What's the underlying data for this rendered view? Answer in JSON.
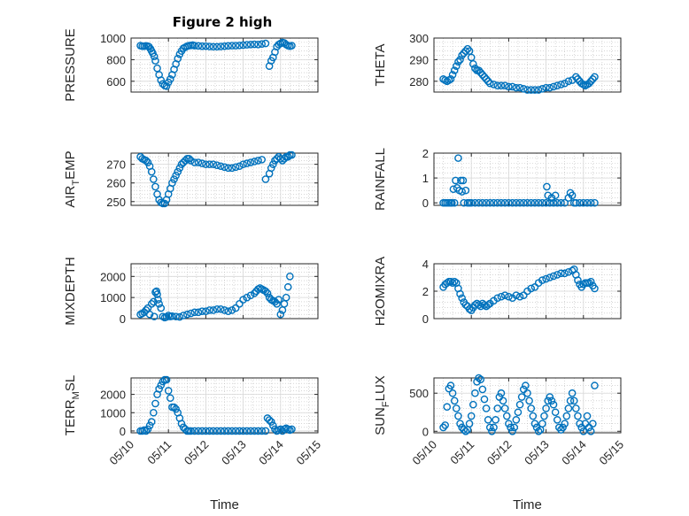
{
  "figure_title": "Figure 2 high",
  "colors": {
    "marker": "#0072bd",
    "axis": "#262626"
  },
  "chart_data": [
    {
      "type": "scatter",
      "ylabel": "PRESSURE",
      "ylabel_sub": "",
      "ylabel_tail": "",
      "title": "Figure 2 high",
      "xlim": [
        "05/10",
        "05/15"
      ],
      "ylim": [
        500,
        1000
      ],
      "yticks": [
        "600",
        "800",
        "1000"
      ],
      "ytick_values": [
        600,
        800,
        1000
      ],
      "xtick_labels_visible": false,
      "grid": true,
      "x": [
        0.25,
        0.3,
        0.35,
        0.4,
        0.45,
        0.48,
        0.52,
        0.55,
        0.58,
        0.62,
        0.65,
        0.7,
        0.75,
        0.8,
        0.85,
        0.9,
        0.95,
        1.0,
        1.05,
        1.1,
        1.15,
        1.2,
        1.25,
        1.3,
        1.35,
        1.4,
        1.45,
        1.5,
        1.55,
        1.6,
        1.65,
        1.7,
        1.8,
        1.9,
        2.0,
        2.1,
        2.2,
        2.3,
        2.4,
        2.5,
        2.6,
        2.7,
        2.8,
        2.9,
        3.0,
        3.1,
        3.2,
        3.3,
        3.4,
        3.5,
        3.6,
        3.7,
        3.75,
        3.8,
        3.85,
        3.9,
        3.95,
        4.0,
        4.05,
        4.1,
        4.15,
        4.2,
        4.25,
        4.3
      ],
      "y": [
        930,
        925,
        925,
        928,
        925,
        920,
        900,
        880,
        860,
        830,
        790,
        720,
        660,
        610,
        575,
        560,
        555,
        590,
        620,
        660,
        710,
        760,
        810,
        850,
        880,
        905,
        915,
        925,
        930,
        932,
        935,
        930,
        928,
        925,
        925,
        922,
        920,
        920,
        922,
        925,
        928,
        930,
        930,
        932,
        935,
        938,
        940,
        942,
        940,
        945,
        950,
        740,
        790,
        820,
        870,
        920,
        940,
        950,
        960,
        955,
        940,
        930,
        925,
        930
      ]
    },
    {
      "type": "scatter",
      "ylabel": "THETA",
      "ylabel_sub": "",
      "ylabel_tail": "",
      "xlim": [
        "05/10",
        "05/15"
      ],
      "ylim": [
        275,
        300
      ],
      "yticks": [
        "280",
        "290",
        "300"
      ],
      "ytick_values": [
        280,
        290,
        300
      ],
      "xtick_labels_visible": false,
      "grid": true,
      "x": [
        0.25,
        0.3,
        0.35,
        0.4,
        0.45,
        0.5,
        0.55,
        0.6,
        0.65,
        0.7,
        0.75,
        0.8,
        0.85,
        0.9,
        0.95,
        1.0,
        1.05,
        1.1,
        1.15,
        1.2,
        1.25,
        1.3,
        1.35,
        1.4,
        1.45,
        1.5,
        1.6,
        1.7,
        1.8,
        1.9,
        2.0,
        2.1,
        2.2,
        2.3,
        2.4,
        2.5,
        2.6,
        2.7,
        2.8,
        2.9,
        3.0,
        3.1,
        3.2,
        3.3,
        3.4,
        3.5,
        3.6,
        3.7,
        3.8,
        3.85,
        3.9,
        3.95,
        4.0,
        4.05,
        4.1,
        4.15,
        4.2,
        4.25,
        4.3
      ],
      "y": [
        281,
        280.5,
        280,
        280.5,
        281,
        283,
        285,
        287,
        289,
        290,
        292,
        293,
        294,
        295,
        294,
        291,
        288,
        286,
        285,
        285,
        284,
        283,
        282,
        281,
        280,
        279,
        278.5,
        278,
        278,
        278,
        277.5,
        277.5,
        277,
        277,
        276.5,
        276,
        276,
        276,
        276,
        276.5,
        277,
        277,
        277.5,
        278,
        278.5,
        279,
        280,
        280.5,
        282,
        281,
        280,
        279,
        278.5,
        278,
        278.5,
        279,
        280,
        281,
        282
      ]
    },
    {
      "type": "scatter",
      "ylabel": "AIR",
      "ylabel_sub": "T",
      "ylabel_tail": "EMP",
      "xlim": [
        "05/10",
        "05/15"
      ],
      "ylim": [
        248,
        276
      ],
      "yticks": [
        "250",
        "260",
        "270"
      ],
      "ytick_values": [
        250,
        260,
        270
      ],
      "xtick_labels_visible": false,
      "grid": true,
      "x": [
        0.25,
        0.3,
        0.35,
        0.4,
        0.45,
        0.5,
        0.55,
        0.6,
        0.65,
        0.7,
        0.75,
        0.8,
        0.85,
        0.9,
        0.95,
        1.0,
        1.05,
        1.1,
        1.15,
        1.2,
        1.25,
        1.3,
        1.35,
        1.4,
        1.45,
        1.5,
        1.55,
        1.6,
        1.7,
        1.8,
        1.9,
        2.0,
        2.1,
        2.2,
        2.3,
        2.4,
        2.5,
        2.6,
        2.7,
        2.8,
        2.9,
        3.0,
        3.1,
        3.2,
        3.3,
        3.4,
        3.5,
        3.6,
        3.7,
        3.75,
        3.8,
        3.85,
        3.9,
        3.95,
        4.0,
        4.05,
        4.1,
        4.15,
        4.2,
        4.25,
        4.3
      ],
      "y": [
        274,
        273,
        272.5,
        272,
        271,
        269,
        266,
        262,
        258,
        254,
        251,
        249.5,
        249,
        249,
        251,
        254,
        257,
        260,
        262,
        264,
        266,
        268,
        270,
        271,
        272,
        273,
        273,
        272,
        271,
        271,
        270.5,
        270,
        270,
        270,
        269.5,
        269,
        268.5,
        268,
        268,
        268.5,
        269,
        270,
        270.5,
        271,
        271.5,
        272,
        272.5,
        262,
        265,
        268,
        270,
        272,
        273,
        274,
        273,
        272,
        273,
        274,
        274,
        275,
        275
      ]
    },
    {
      "type": "scatter",
      "ylabel": "RAINFALL",
      "ylabel_sub": "",
      "ylabel_tail": "",
      "xlim": [
        "05/10",
        "05/15"
      ],
      "ylim": [
        -0.1,
        2
      ],
      "yticks": [
        "0",
        "1",
        "2"
      ],
      "ytick_values": [
        0,
        1,
        2
      ],
      "xtick_labels_visible": false,
      "grid": true,
      "x": [
        0.25,
        0.3,
        0.35,
        0.4,
        0.45,
        0.48,
        0.52,
        0.55,
        0.58,
        0.62,
        0.65,
        0.68,
        0.72,
        0.75,
        0.78,
        0.8,
        0.85,
        0.9,
        0.95,
        1.0,
        1.1,
        1.2,
        1.3,
        1.4,
        1.5,
        1.6,
        1.7,
        1.8,
        1.9,
        2.0,
        2.1,
        2.2,
        2.3,
        2.4,
        2.5,
        2.6,
        2.7,
        2.8,
        2.9,
        3.0,
        3.02,
        3.05,
        3.1,
        3.15,
        3.2,
        3.25,
        3.3,
        3.4,
        3.5,
        3.6,
        3.65,
        3.7,
        3.75,
        3.8,
        3.9,
        4.0,
        4.1,
        4.2,
        4.3
      ],
      "y": [
        0,
        0,
        0,
        0,
        0,
        0,
        0.55,
        0,
        0.9,
        0.6,
        1.8,
        0.5,
        0.9,
        0.45,
        0.9,
        0,
        0.5,
        0,
        0,
        0,
        0,
        0,
        0,
        0,
        0,
        0,
        0,
        0,
        0,
        0,
        0,
        0,
        0,
        0,
        0,
        0,
        0,
        0,
        0,
        0,
        0.65,
        0.3,
        0,
        0.2,
        0,
        0.3,
        0,
        0,
        0,
        0.2,
        0.4,
        0.3,
        0,
        0,
        0,
        0,
        0,
        0,
        0
      ]
    },
    {
      "type": "scatter",
      "ylabel": "MIXDEPTH",
      "ylabel_sub": "",
      "ylabel_tail": "",
      "xlim": [
        "05/10",
        "05/15"
      ],
      "ylim": [
        0,
        2600
      ],
      "yticks": [
        "0",
        "1000",
        "2000"
      ],
      "ytick_values": [
        0,
        1000,
        2000
      ],
      "xtick_labels_visible": false,
      "grid": true,
      "x": [
        0.25,
        0.3,
        0.35,
        0.4,
        0.45,
        0.5,
        0.55,
        0.6,
        0.62,
        0.65,
        0.68,
        0.7,
        0.72,
        0.75,
        0.8,
        0.85,
        0.9,
        0.95,
        1.0,
        1.05,
        1.1,
        1.2,
        1.3,
        1.4,
        1.5,
        1.6,
        1.7,
        1.8,
        1.9,
        2.0,
        2.1,
        2.2,
        2.3,
        2.4,
        2.5,
        2.6,
        2.7,
        2.8,
        2.9,
        3.0,
        3.1,
        3.2,
        3.3,
        3.35,
        3.4,
        3.45,
        3.5,
        3.55,
        3.6,
        3.65,
        3.7,
        3.75,
        3.8,
        3.85,
        3.9,
        3.95,
        4.0,
        4.05,
        4.1,
        4.15,
        4.2,
        4.25
      ],
      "y": [
        200,
        250,
        300,
        400,
        500,
        200,
        700,
        800,
        100,
        1250,
        1300,
        1150,
        900,
        700,
        500,
        100,
        50,
        80,
        150,
        100,
        120,
        100,
        80,
        150,
        200,
        250,
        300,
        300,
        350,
        350,
        400,
        400,
        450,
        450,
        400,
        350,
        400,
        500,
        700,
        900,
        1000,
        1100,
        1200,
        1300,
        1400,
        1450,
        1400,
        1350,
        1300,
        1200,
        1000,
        900,
        850,
        800,
        700,
        900,
        200,
        400,
        700,
        1000,
        1500,
        2000
      ]
    },
    {
      "type": "scatter",
      "ylabel": "H2OMIXRA",
      "ylabel_sub": "",
      "ylabel_tail": "",
      "xlim": [
        "05/10",
        "05/15"
      ],
      "ylim": [
        0,
        4
      ],
      "yticks": [
        "0",
        "2",
        "4"
      ],
      "ytick_values": [
        0,
        2,
        4
      ],
      "xtick_labels_visible": false,
      "grid": true,
      "x": [
        0.25,
        0.3,
        0.35,
        0.4,
        0.45,
        0.5,
        0.55,
        0.6,
        0.65,
        0.7,
        0.75,
        0.8,
        0.85,
        0.9,
        0.95,
        1.0,
        1.05,
        1.1,
        1.15,
        1.2,
        1.25,
        1.3,
        1.35,
        1.4,
        1.45,
        1.5,
        1.6,
        1.7,
        1.8,
        1.9,
        2.0,
        2.1,
        2.2,
        2.3,
        2.4,
        2.5,
        2.6,
        2.7,
        2.8,
        2.9,
        3.0,
        3.1,
        3.2,
        3.3,
        3.4,
        3.5,
        3.6,
        3.7,
        3.75,
        3.8,
        3.85,
        3.9,
        3.95,
        4.0,
        4.05,
        4.1,
        4.15,
        4.2,
        4.25,
        4.3
      ],
      "y": [
        2.3,
        2.5,
        2.6,
        2.7,
        2.7,
        2.6,
        2.7,
        2.6,
        2.2,
        1.8,
        1.5,
        1.2,
        1.0,
        0.9,
        0.7,
        0.6,
        0.8,
        1.0,
        1.1,
        1.0,
        0.9,
        1.1,
        1.0,
        0.9,
        1.0,
        1.1,
        1.3,
        1.5,
        1.6,
        1.7,
        1.6,
        1.5,
        1.7,
        1.6,
        1.7,
        2.0,
        2.2,
        2.3,
        2.6,
        2.8,
        2.9,
        3.0,
        3.1,
        3.2,
        3.3,
        3.3,
        3.4,
        3.5,
        3.6,
        3.2,
        2.8,
        2.5,
        2.3,
        2.5,
        2.6,
        2.6,
        2.6,
        2.7,
        2.4,
        2.2
      ]
    },
    {
      "type": "scatter",
      "ylabel": "TERR",
      "ylabel_sub": "M",
      "ylabel_tail": "SL",
      "xlim": [
        "05/10",
        "05/15"
      ],
      "xticks": [
        "05/10",
        "05/11",
        "05/12",
        "05/13",
        "05/14",
        "05/15"
      ],
      "xlabel": "Time",
      "ylim": [
        -100,
        2900
      ],
      "yticks": [
        "0",
        "1000",
        "2000"
      ],
      "ytick_values": [
        0,
        1000,
        2000
      ],
      "xtick_labels_visible": true,
      "grid": true,
      "x": [
        0.25,
        0.3,
        0.35,
        0.4,
        0.45,
        0.5,
        0.55,
        0.6,
        0.65,
        0.7,
        0.75,
        0.8,
        0.85,
        0.9,
        0.95,
        1.0,
        1.05,
        1.1,
        1.15,
        1.2,
        1.25,
        1.3,
        1.35,
        1.4,
        1.45,
        1.5,
        1.55,
        1.6,
        1.7,
        1.8,
        1.9,
        2.0,
        2.1,
        2.2,
        2.3,
        2.4,
        2.5,
        2.6,
        2.7,
        2.8,
        2.9,
        3.0,
        3.1,
        3.2,
        3.3,
        3.4,
        3.5,
        3.6,
        3.65,
        3.7,
        3.75,
        3.8,
        3.85,
        3.9,
        3.95,
        4.0,
        4.05,
        4.1,
        4.15,
        4.2,
        4.25,
        4.3
      ],
      "y": [
        0,
        0,
        50,
        0,
        100,
        300,
        500,
        1000,
        1500,
        2000,
        2300,
        2500,
        2700,
        2800,
        2800,
        2200,
        1800,
        1300,
        1300,
        1200,
        1000,
        700,
        400,
        200,
        100,
        0,
        0,
        0,
        0,
        0,
        0,
        0,
        0,
        0,
        0,
        0,
        0,
        0,
        0,
        0,
        0,
        0,
        0,
        0,
        0,
        0,
        0,
        0,
        700,
        600,
        500,
        300,
        100,
        0,
        50,
        100,
        0,
        100,
        150,
        100,
        50,
        100
      ]
    },
    {
      "type": "scatter",
      "ylabel": "SUN",
      "ylabel_sub": "F",
      "ylabel_tail": "LUX",
      "xlim": [
        "05/10",
        "05/15"
      ],
      "xticks": [
        "05/10",
        "05/11",
        "05/12",
        "05/13",
        "05/14",
        "05/15"
      ],
      "xlabel": "Time",
      "ylim": [
        -20,
        700
      ],
      "yticks": [
        "0",
        "500"
      ],
      "ytick_values": [
        0,
        500
      ],
      "xtick_labels_visible": true,
      "grid": true,
      "x": [
        0.25,
        0.3,
        0.35,
        0.4,
        0.45,
        0.5,
        0.55,
        0.6,
        0.65,
        0.7,
        0.75,
        0.8,
        0.85,
        0.9,
        0.95,
        1.0,
        1.05,
        1.1,
        1.15,
        1.2,
        1.25,
        1.3,
        1.35,
        1.4,
        1.45,
        1.5,
        1.55,
        1.6,
        1.65,
        1.7,
        1.75,
        1.8,
        1.85,
        1.9,
        1.95,
        2.0,
        2.05,
        2.1,
        2.15,
        2.2,
        2.25,
        2.3,
        2.35,
        2.4,
        2.45,
        2.5,
        2.55,
        2.6,
        2.65,
        2.7,
        2.75,
        2.8,
        2.85,
        2.9,
        2.95,
        3.0,
        3.05,
        3.1,
        3.15,
        3.2,
        3.25,
        3.3,
        3.35,
        3.4,
        3.45,
        3.5,
        3.55,
        3.6,
        3.65,
        3.7,
        3.75,
        3.8,
        3.85,
        3.9,
        3.95,
        4.0,
        4.05,
        4.1,
        4.15,
        4.2,
        4.25,
        4.3
      ],
      "y": [
        50,
        80,
        320,
        560,
        600,
        500,
        400,
        300,
        200,
        100,
        50,
        20,
        0,
        20,
        100,
        200,
        350,
        500,
        650,
        700,
        680,
        550,
        420,
        300,
        150,
        50,
        0,
        50,
        150,
        300,
        450,
        500,
        400,
        300,
        200,
        100,
        50,
        0,
        50,
        150,
        250,
        350,
        450,
        550,
        600,
        500,
        400,
        300,
        200,
        100,
        50,
        0,
        20,
        100,
        200,
        300,
        400,
        450,
        400,
        350,
        250,
        150,
        50,
        20,
        50,
        100,
        200,
        300,
        400,
        500,
        400,
        300,
        200,
        100,
        50,
        0,
        100,
        200,
        50,
        0,
        100,
        600
      ]
    }
  ]
}
